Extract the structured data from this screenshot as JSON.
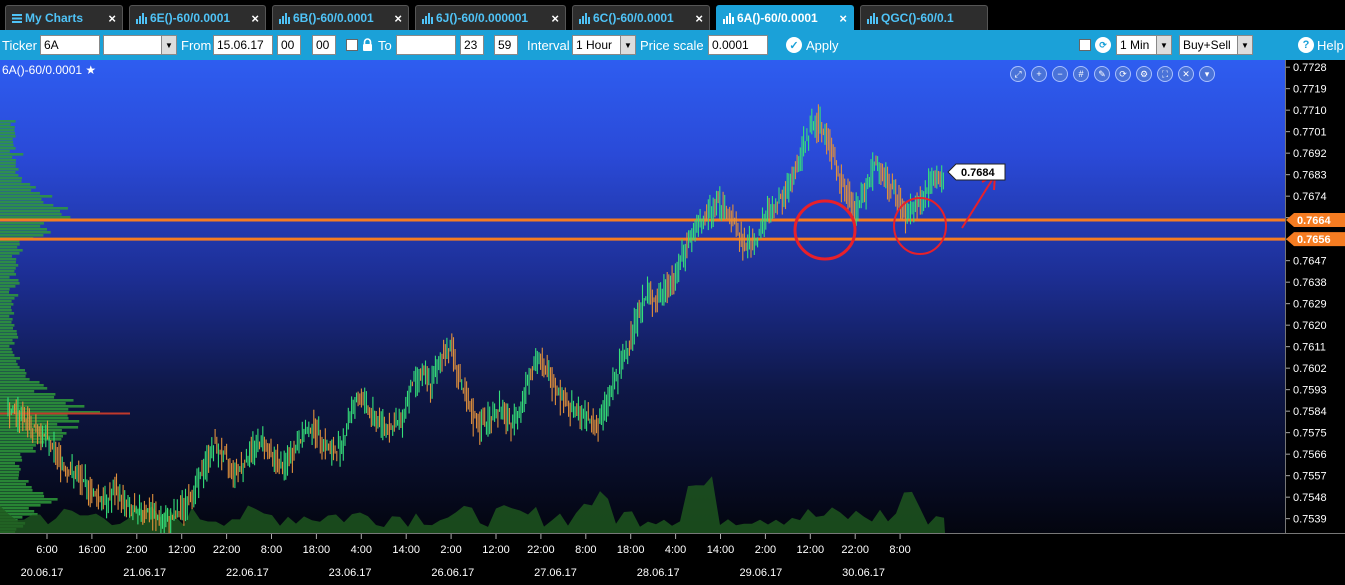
{
  "tabs": [
    {
      "label": "My Charts",
      "icon": "menu-icon",
      "active": false
    },
    {
      "label": "6E()-60/0.0001",
      "icon": "bar-chart-icon",
      "active": false
    },
    {
      "label": "6B()-60/0.0001",
      "icon": "bar-chart-icon",
      "active": false
    },
    {
      "label": "6J()-60/0.000001",
      "icon": "bar-chart-icon",
      "active": false
    },
    {
      "label": "6C()-60/0.0001",
      "icon": "bar-chart-icon",
      "active": false
    },
    {
      "label": "6A()-60/0.0001",
      "icon": "bar-chart-icon",
      "active": true
    },
    {
      "label": "QGC()-60/0.1",
      "icon": "bar-chart-icon",
      "active": false
    }
  ],
  "toolbar": {
    "ticker_label": "Ticker",
    "ticker_value": "6A",
    "from_label": "From",
    "from_date": "15.06.17",
    "from_hour": "00",
    "from_min": "00",
    "to_label": "To",
    "to_date": "",
    "to_hour": "23",
    "to_min": "59",
    "interval_label": "Interval",
    "interval_value": "1 Hour",
    "price_scale_label": "Price scale",
    "price_scale_value": "0.0001",
    "apply_label": "Apply",
    "timeframe_value": "1 Min",
    "side_value": "Buy+Sell",
    "help_label": "Help"
  },
  "chart": {
    "title": "6A()-60/0.0001",
    "price_tag": "0.7684",
    "level_upper": "0.7664",
    "level_lower": "0.7656",
    "tool_icons": [
      "zoom-fit-icon",
      "zoom-in-icon",
      "zoom-out-icon",
      "grid-icon",
      "pen-icon",
      "refresh-icon",
      "settings-icon",
      "fullscreen-icon",
      "close-icon",
      "dropdown-icon"
    ]
  },
  "colors": {
    "tab_active": "#1ba1d8",
    "toolbar": "#1ba1d8",
    "level_line": "#f57c22",
    "bull_bar": "#35e07a",
    "bear_bar": "#e0903c",
    "annotation": "#e8202a"
  },
  "chart_data": {
    "type": "bar",
    "title": "6A()-60/0.0001",
    "y_ticks": [
      "0.7728",
      "0.7719",
      "0.7710",
      "0.7701",
      "0.7692",
      "0.7683",
      "0.7674",
      "0.7665",
      "0.7656",
      "0.7647",
      "0.7638",
      "0.7629",
      "0.7620",
      "0.7611",
      "0.7602",
      "0.7593",
      "0.7584",
      "0.7575",
      "0.7566",
      "0.7557",
      "0.7548",
      "0.7539"
    ],
    "ylim": [
      0.7533,
      0.7731
    ],
    "x_time_labels": [
      "6:00",
      "16:00",
      "2:00",
      "12:00",
      "22:00",
      "8:00",
      "18:00",
      "4:00",
      "14:00",
      "2:00",
      "12:00",
      "22:00",
      "8:00",
      "18:00",
      "4:00",
      "14:00",
      "2:00",
      "12:00",
      "22:00",
      "8:00"
    ],
    "x_date_labels": [
      "20.06.17",
      "21.06.17",
      "22.06.17",
      "23.06.17",
      "26.06.17",
      "27.06.17",
      "28.06.17",
      "29.06.17",
      "30.06.17"
    ],
    "horizontal_levels": [
      0.7664,
      0.7656
    ],
    "last_price": 0.7684,
    "price_path": [
      [
        0.7584,
        0.7583
      ],
      [
        0.7583,
        0.758
      ],
      [
        0.758,
        0.7576
      ],
      [
        0.7576,
        0.7573
      ],
      [
        0.7573,
        0.7566
      ],
      [
        0.7566,
        0.756
      ],
      [
        0.756,
        0.7557
      ],
      [
        0.7557,
        0.7553
      ],
      [
        0.7553,
        0.7549
      ],
      [
        0.7549,
        0.7546
      ],
      [
        0.7546,
        0.755
      ],
      [
        0.755,
        0.7546
      ],
      [
        0.7546,
        0.7541
      ],
      [
        0.7541,
        0.7543
      ],
      [
        0.7543,
        0.754
      ],
      [
        0.754,
        0.7537
      ],
      [
        0.7537,
        0.754
      ],
      [
        0.754,
        0.7544
      ],
      [
        0.7544,
        0.7551
      ],
      [
        0.7551,
        0.756
      ],
      [
        0.756,
        0.757
      ],
      [
        0.757,
        0.7565
      ],
      [
        0.7565,
        0.7559
      ],
      [
        0.7559,
        0.7562
      ],
      [
        0.7562,
        0.7569
      ],
      [
        0.7569,
        0.7572
      ],
      [
        0.7572,
        0.7565
      ],
      [
        0.7565,
        0.756
      ],
      [
        0.756,
        0.7566
      ],
      [
        0.7566,
        0.7574
      ],
      [
        0.7574,
        0.7578
      ],
      [
        0.7578,
        0.7572
      ],
      [
        0.7572,
        0.7566
      ],
      [
        0.7566,
        0.757
      ],
      [
        0.757,
        0.7586
      ],
      [
        0.7586,
        0.759
      ],
      [
        0.759,
        0.7582
      ],
      [
        0.7582,
        0.7579
      ],
      [
        0.7579,
        0.7577
      ],
      [
        0.7577,
        0.758
      ],
      [
        0.758,
        0.7595
      ],
      [
        0.7595,
        0.76
      ],
      [
        0.76,
        0.7595
      ],
      [
        0.7595,
        0.7606
      ],
      [
        0.7606,
        0.7612
      ],
      [
        0.7612,
        0.7596
      ],
      [
        0.7596,
        0.7583
      ],
      [
        0.7583,
        0.7578
      ],
      [
        0.7578,
        0.7581
      ],
      [
        0.7581,
        0.7585
      ],
      [
        0.7585,
        0.7578
      ],
      [
        0.7578,
        0.7584
      ],
      [
        0.7584,
        0.7601
      ],
      [
        0.7601,
        0.7605
      ],
      [
        0.7605,
        0.7599
      ],
      [
        0.7599,
        0.7592
      ],
      [
        0.7592,
        0.7586
      ],
      [
        0.7586,
        0.7583
      ],
      [
        0.7583,
        0.7581
      ],
      [
        0.7581,
        0.7578
      ],
      [
        0.7578,
        0.759
      ],
      [
        0.759,
        0.76
      ],
      [
        0.76,
        0.7612
      ],
      [
        0.7612,
        0.7625
      ],
      [
        0.7625,
        0.7633
      ],
      [
        0.7633,
        0.763
      ],
      [
        0.763,
        0.7636
      ],
      [
        0.7636,
        0.7642
      ],
      [
        0.7642,
        0.7655
      ],
      [
        0.7655,
        0.766
      ],
      [
        0.766,
        0.7665
      ],
      [
        0.7665,
        0.7672
      ],
      [
        0.7672,
        0.7668
      ],
      [
        0.7668,
        0.766
      ],
      [
        0.766,
        0.7652
      ],
      [
        0.7652,
        0.7656
      ],
      [
        0.7656,
        0.7665
      ],
      [
        0.7665,
        0.7671
      ],
      [
        0.7671,
        0.7675
      ],
      [
        0.7675,
        0.7684
      ],
      [
        0.7684,
        0.7698
      ],
      [
        0.7698,
        0.7706
      ],
      [
        0.7706,
        0.77
      ],
      [
        0.77,
        0.7688
      ],
      [
        0.7688,
        0.7676
      ],
      [
        0.7676,
        0.7668
      ],
      [
        0.7668,
        0.7675
      ],
      [
        0.7675,
        0.7689
      ],
      [
        0.7689,
        0.7682
      ],
      [
        0.7682,
        0.7676
      ],
      [
        0.7676,
        0.7666
      ],
      [
        0.7666,
        0.7669
      ],
      [
        0.7669,
        0.7674
      ],
      [
        0.7674,
        0.768
      ],
      [
        0.768,
        0.7684
      ]
    ]
  }
}
